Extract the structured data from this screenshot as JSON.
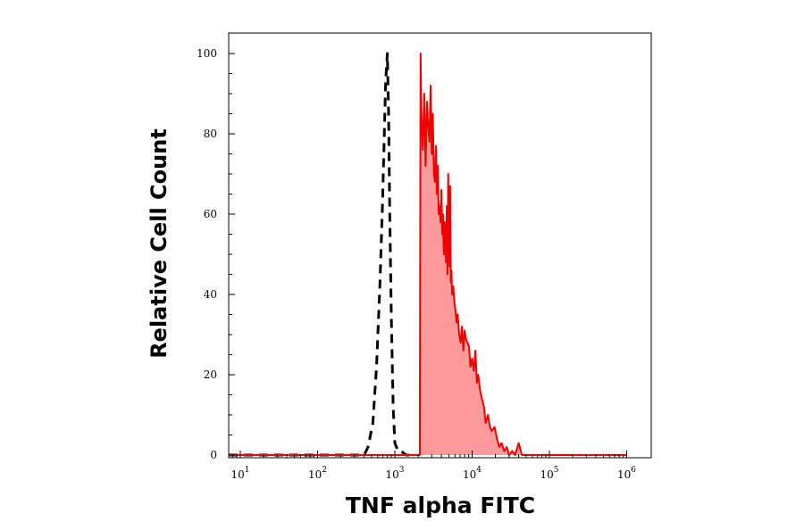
{
  "chart_data": {
    "type": "area",
    "title": "",
    "xlabel": "TNF alpha FITC",
    "ylabel": "Relative Cell Count",
    "xscale": "log",
    "xlim": [
      10,
      1000000
    ],
    "ylim": [
      0,
      100
    ],
    "x_ticks": [
      {
        "value": 10,
        "base": "10",
        "exp": "1"
      },
      {
        "value": 100,
        "base": "10",
        "exp": "2"
      },
      {
        "value": 1000,
        "base": "10",
        "exp": "3"
      },
      {
        "value": 10000,
        "base": "10",
        "exp": "4"
      },
      {
        "value": 100000,
        "base": "10",
        "exp": "5"
      },
      {
        "value": 1000000,
        "base": "10",
        "exp": "6"
      }
    ],
    "y_ticks": [
      "0",
      "20",
      "40",
      "60",
      "80",
      "100"
    ],
    "grid": false,
    "series": [
      {
        "style": "dashed",
        "color": "#000000",
        "fill": "none",
        "x": [
          7,
          400,
          450,
          520,
          580,
          640,
          690,
          730,
          760,
          800,
          830,
          860,
          900,
          950,
          1000,
          1100,
          1200,
          1400,
          1600
        ],
        "y": [
          0,
          0,
          2,
          8,
          22,
          42,
          62,
          80,
          93,
          100,
          85,
          60,
          35,
          12,
          3,
          1,
          1,
          0,
          0
        ]
      },
      {
        "style": "solid",
        "color": "#ee0000",
        "fill": "#ff9a9a",
        "x": [
          7,
          2100,
          2150,
          2200,
          2300,
          2400,
          2500,
          2600,
          2700,
          2800,
          2900,
          3000,
          3100,
          3200,
          3300,
          3400,
          3500,
          3600,
          3700,
          3800,
          3900,
          4000,
          4100,
          4200,
          4300,
          4400,
          4500,
          4600,
          4700,
          4800,
          4900,
          5000,
          5100,
          5200,
          5300,
          5400,
          5500,
          5700,
          5900,
          6100,
          6300,
          6500,
          6800,
          7100,
          7400,
          7700,
          8000,
          8300,
          8700,
          9100,
          9500,
          10000,
          10500,
          11000,
          11500,
          12000,
          12700,
          13400,
          14200,
          15000,
          16000,
          17000,
          18000,
          19500,
          21000,
          22500,
          24000,
          26000,
          28000,
          30000,
          33000,
          36000,
          40000,
          44000,
          48000,
          52000,
          56000,
          60000,
          65000,
          70000,
          75000,
          80000,
          85000,
          90000,
          95000,
          100000,
          1000000
        ],
        "y": [
          0,
          0,
          100,
          86,
          76,
          90,
          72,
          88,
          82,
          78,
          92,
          75,
          85,
          70,
          68,
          77,
          65,
          72,
          60,
          62,
          58,
          66,
          55,
          60,
          50,
          58,
          52,
          48,
          62,
          45,
          70,
          55,
          47,
          67,
          43,
          46,
          40,
          42,
          38,
          36,
          33,
          35,
          30,
          28,
          32,
          26,
          31,
          29,
          28,
          27,
          22,
          24,
          21,
          26,
          18,
          20,
          16,
          14,
          12,
          8,
          10,
          7,
          6,
          7,
          4,
          2,
          3,
          1,
          2,
          0,
          1,
          0,
          3,
          0,
          0,
          0,
          0,
          0,
          0,
          0,
          0,
          0,
          0,
          0,
          0,
          0,
          0
        ]
      }
    ]
  }
}
